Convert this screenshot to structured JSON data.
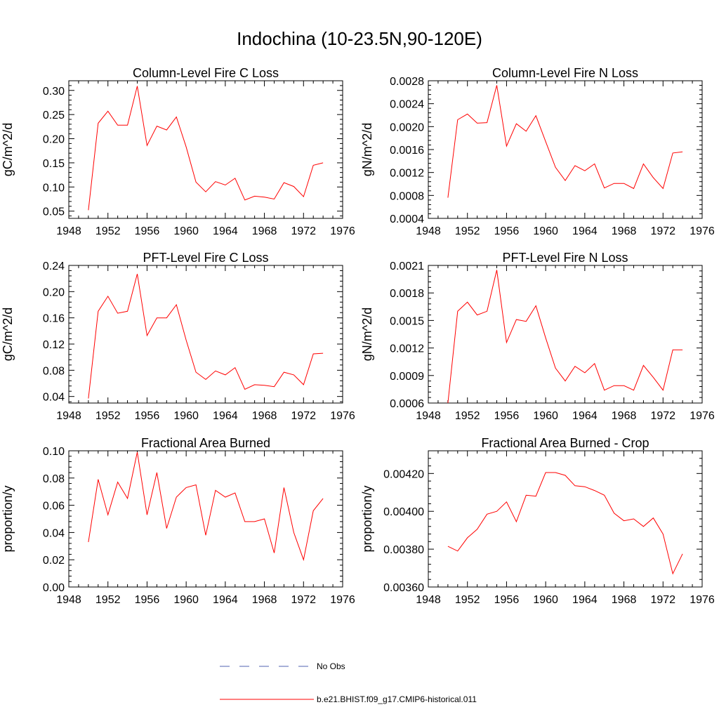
{
  "title": "Indochina (10-23.5N,90-120E)",
  "series_color": "#ff0000",
  "obs_color": "#5060b0",
  "legend": [
    {
      "label": "No Obs",
      "style": "dashed"
    },
    {
      "label": "b.e21.BHIST.f09_g17.CMIP6-historical.011",
      "style": "solid"
    }
  ],
  "chart_data": [
    {
      "type": "line",
      "title": "Column-Level Fire C Loss",
      "ylabel": "gC/m^2/d",
      "xlim": [
        1948,
        1976
      ],
      "xticks": [
        1948,
        1952,
        1956,
        1960,
        1964,
        1968,
        1972,
        1976
      ],
      "ylim": [
        0.035,
        0.32
      ],
      "yticks": [
        0.05,
        0.1,
        0.15,
        0.2,
        0.25,
        0.3
      ],
      "ytick_labels": [
        "0.05",
        "0.10",
        "0.15",
        "0.20",
        "0.25",
        "0.30"
      ],
      "x": [
        1950,
        1951,
        1952,
        1953,
        1954,
        1955,
        1956,
        1957,
        1958,
        1959,
        1960,
        1961,
        1962,
        1963,
        1964,
        1965,
        1966,
        1967,
        1968,
        1969,
        1970,
        1971,
        1972,
        1973,
        1974
      ],
      "y": [
        0.052,
        0.232,
        0.257,
        0.228,
        0.228,
        0.309,
        0.186,
        0.226,
        0.218,
        0.245,
        0.183,
        0.11,
        0.09,
        0.111,
        0.104,
        0.118,
        0.073,
        0.081,
        0.079,
        0.075,
        0.109,
        0.101,
        0.08,
        0.145,
        0.15
      ]
    },
    {
      "type": "line",
      "title": "Column-Level Fire N Loss",
      "ylabel": "gN/m^2/d",
      "xlim": [
        1948,
        1976
      ],
      "xticks": [
        1948,
        1952,
        1956,
        1960,
        1964,
        1968,
        1972,
        1976
      ],
      "ylim": [
        0.0004,
        0.0028
      ],
      "yticks": [
        0.0004,
        0.0008,
        0.0012,
        0.0016,
        0.002,
        0.0024,
        0.0028
      ],
      "ytick_labels": [
        "0.0004",
        "0.0008",
        "0.0012",
        "0.0016",
        "0.0020",
        "0.0024",
        "0.0028"
      ],
      "x": [
        1950,
        1951,
        1952,
        1953,
        1954,
        1955,
        1956,
        1957,
        1958,
        1959,
        1960,
        1961,
        1962,
        1963,
        1964,
        1965,
        1966,
        1967,
        1968,
        1969,
        1970,
        1971,
        1972,
        1973,
        1974
      ],
      "y": [
        0.00076,
        0.00212,
        0.00222,
        0.00206,
        0.00207,
        0.00272,
        0.00166,
        0.00205,
        0.00192,
        0.00219,
        0.00174,
        0.00129,
        0.00106,
        0.00132,
        0.00123,
        0.00135,
        0.00093,
        0.00101,
        0.00101,
        0.00092,
        0.00135,
        0.00111,
        0.00092,
        0.00154,
        0.00156
      ]
    },
    {
      "type": "line",
      "title": "PFT-Level Fire C Loss",
      "ylabel": "gC/m^2/d",
      "xlim": [
        1948,
        1976
      ],
      "xticks": [
        1948,
        1952,
        1956,
        1960,
        1964,
        1968,
        1972,
        1976
      ],
      "ylim": [
        0.03,
        0.24
      ],
      "yticks": [
        0.04,
        0.08,
        0.12,
        0.16,
        0.2,
        0.24
      ],
      "ytick_labels": [
        "0.04",
        "0.08",
        "0.12",
        "0.16",
        "0.20",
        "0.24"
      ],
      "x": [
        1950,
        1951,
        1952,
        1953,
        1954,
        1955,
        1956,
        1957,
        1958,
        1959,
        1960,
        1961,
        1962,
        1963,
        1964,
        1965,
        1966,
        1967,
        1968,
        1969,
        1970,
        1971,
        1972,
        1973,
        1974
      ],
      "y": [
        0.037,
        0.17,
        0.193,
        0.167,
        0.17,
        0.227,
        0.133,
        0.16,
        0.16,
        0.18,
        0.126,
        0.077,
        0.066,
        0.079,
        0.073,
        0.084,
        0.051,
        0.058,
        0.057,
        0.055,
        0.077,
        0.073,
        0.058,
        0.105,
        0.106
      ]
    },
    {
      "type": "line",
      "title": "PFT-Level Fire N Loss",
      "ylabel": "gN/m^2/d",
      "xlim": [
        1948,
        1976
      ],
      "xticks": [
        1948,
        1952,
        1956,
        1960,
        1964,
        1968,
        1972,
        1976
      ],
      "ylim": [
        0.0006,
        0.0021
      ],
      "yticks": [
        0.0006,
        0.0009,
        0.0012,
        0.0015,
        0.0018,
        0.0021
      ],
      "ytick_labels": [
        "0.0006",
        "0.0009",
        "0.0012",
        "0.0015",
        "0.0018",
        "0.0021"
      ],
      "x": [
        1950,
        1951,
        1952,
        1953,
        1954,
        1955,
        1956,
        1957,
        1958,
        1959,
        1960,
        1961,
        1962,
        1963,
        1964,
        1965,
        1966,
        1967,
        1968,
        1969,
        1970,
        1971,
        1972,
        1973,
        1974
      ],
      "y": [
        0.0006,
        0.0016,
        0.0017,
        0.00156,
        0.0016,
        0.00205,
        0.00126,
        0.00151,
        0.00149,
        0.00166,
        0.00131,
        0.00098,
        0.00084,
        0.001,
        0.00093,
        0.00103,
        0.00074,
        0.00079,
        0.00079,
        0.00074,
        0.00101,
        0.00088,
        0.00074,
        0.00118,
        0.00118
      ]
    },
    {
      "type": "line",
      "title": "Fractional Area Burned",
      "ylabel": "proportion/y",
      "xlim": [
        1948,
        1976
      ],
      "xticks": [
        1948,
        1952,
        1956,
        1960,
        1964,
        1968,
        1972,
        1976
      ],
      "ylim": [
        0.0,
        0.1
      ],
      "yticks": [
        0.0,
        0.02,
        0.04,
        0.06,
        0.08,
        0.1
      ],
      "ytick_labels": [
        "0.00",
        "0.02",
        "0.04",
        "0.06",
        "0.08",
        "0.10"
      ],
      "x": [
        1950,
        1951,
        1952,
        1953,
        1954,
        1955,
        1956,
        1957,
        1958,
        1959,
        1960,
        1961,
        1962,
        1963,
        1964,
        1965,
        1966,
        1967,
        1968,
        1969,
        1970,
        1971,
        1972,
        1973,
        1974
      ],
      "y": [
        0.033,
        0.079,
        0.053,
        0.077,
        0.065,
        0.099,
        0.053,
        0.084,
        0.043,
        0.066,
        0.073,
        0.075,
        0.038,
        0.071,
        0.066,
        0.069,
        0.048,
        0.048,
        0.05,
        0.025,
        0.073,
        0.04,
        0.02,
        0.056,
        0.065
      ]
    },
    {
      "type": "line",
      "title": "Fractional Area Burned - Crop",
      "ylabel": "proportion/y",
      "xlim": [
        1948,
        1976
      ],
      "xticks": [
        1948,
        1952,
        1956,
        1960,
        1964,
        1968,
        1972,
        1976
      ],
      "ylim": [
        0.0036,
        0.00432
      ],
      "yticks": [
        0.0036,
        0.0038,
        0.004,
        0.0042
      ],
      "ytick_labels": [
        "0.00360",
        "0.00380",
        "0.00400",
        "0.00420"
      ],
      "x": [
        1950,
        1951,
        1952,
        1953,
        1954,
        1955,
        1956,
        1957,
        1958,
        1959,
        1960,
        1961,
        1962,
        1963,
        1964,
        1965,
        1966,
        1967,
        1968,
        1969,
        1970,
        1971,
        1972,
        1973,
        1974
      ],
      "y": [
        0.003815,
        0.00379,
        0.00386,
        0.003905,
        0.003985,
        0.004,
        0.00405,
        0.003945,
        0.004085,
        0.00408,
        0.004205,
        0.004205,
        0.00419,
        0.004135,
        0.00413,
        0.00411,
        0.004085,
        0.00399,
        0.00395,
        0.00396,
        0.00392,
        0.003965,
        0.00388,
        0.00367,
        0.003775
      ]
    }
  ]
}
